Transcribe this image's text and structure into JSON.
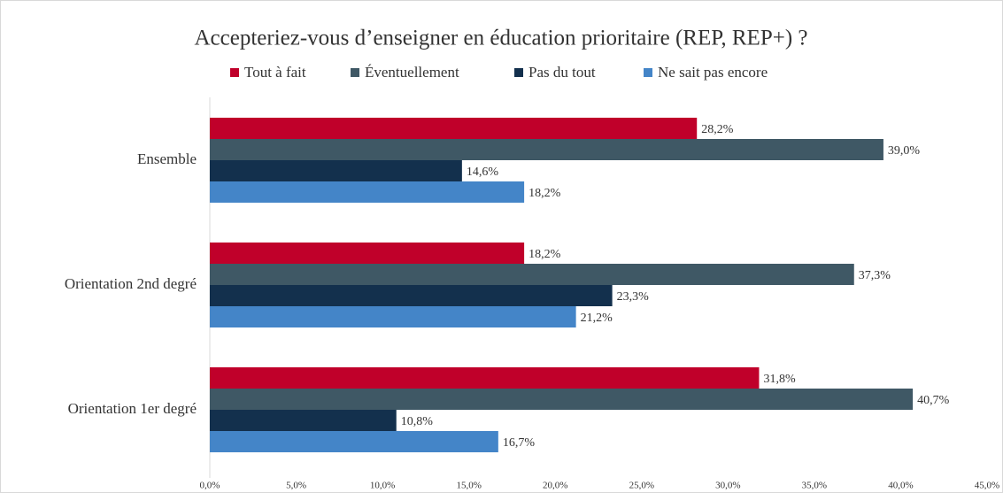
{
  "chart_data": {
    "type": "hbar",
    "title": "Accepteriez-vous d’enseigner en éducation prioritaire (REP, REP+) ?",
    "categories": [
      "Ensemble",
      "Orientation 2nd degré",
      "Orientation 1er degré"
    ],
    "series": [
      {
        "name": "Tout à fait",
        "color": "#c0002a",
        "values": [
          28.2,
          18.2,
          31.8
        ],
        "value_labels": [
          "28,2%",
          "18,2%",
          "31,8%"
        ]
      },
      {
        "name": "Éventuellement",
        "color": "#3f5865",
        "values": [
          39.0,
          37.3,
          40.7
        ],
        "value_labels": [
          "39,0%",
          "37,3%",
          "40,7%"
        ]
      },
      {
        "name": "Pas du tout",
        "color": "#13304d",
        "values": [
          14.6,
          23.3,
          10.8
        ],
        "value_labels": [
          "14,6%",
          "23,3%",
          "10,8%"
        ]
      },
      {
        "name": "Ne sait pas encore",
        "color": "#4485c8",
        "values": [
          18.2,
          21.2,
          16.7
        ],
        "value_labels": [
          "18,2%",
          "21,2%",
          "16,7%"
        ]
      }
    ],
    "xlim": [
      0,
      45
    ],
    "xticks": [
      {
        "value": 0,
        "label": "0,0%"
      },
      {
        "value": 5,
        "label": "5,0%"
      },
      {
        "value": 10,
        "label": "10,0%"
      },
      {
        "value": 15,
        "label": "15,0%"
      },
      {
        "value": 20,
        "label": "20,0%"
      },
      {
        "value": 25,
        "label": "25,0%"
      },
      {
        "value": 30,
        "label": "30,0%"
      },
      {
        "value": 35,
        "label": "35,0%"
      },
      {
        "value": 40,
        "label": "40,0%"
      },
      {
        "value": 45,
        "label": "45,0%"
      }
    ],
    "legend": "top"
  }
}
